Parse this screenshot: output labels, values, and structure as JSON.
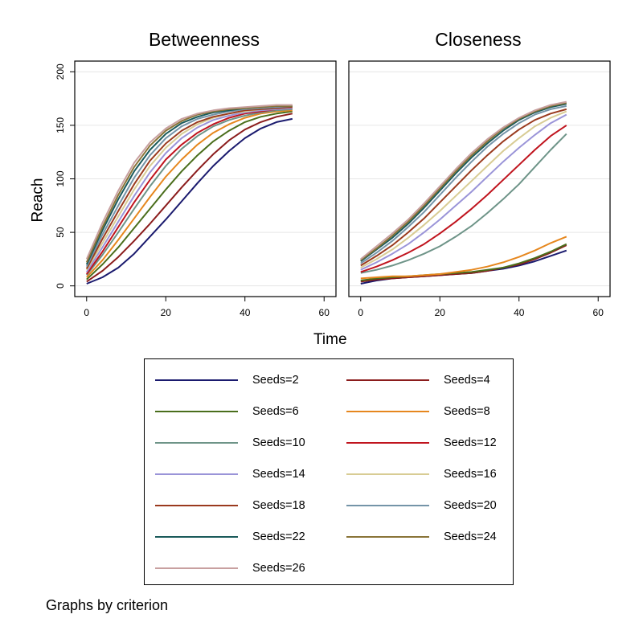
{
  "chart_data": {
    "type": "line",
    "title": "",
    "xlabel": "Time",
    "ylabel": "Reach",
    "xlim": [
      -3,
      63
    ],
    "ylim": [
      -10,
      210
    ],
    "xticks": [
      0,
      20,
      40,
      60
    ],
    "yticks": [
      0,
      50,
      100,
      150,
      200
    ],
    "grid": "horizontal",
    "legend_position": "bottom",
    "note": "Graphs by criterion",
    "x": [
      0,
      4,
      8,
      12,
      16,
      20,
      24,
      28,
      32,
      36,
      40,
      44,
      48,
      52
    ],
    "colors": [
      "#1a1a6e",
      "#8b1c1c",
      "#4a6e1c",
      "#e6871e",
      "#6e9488",
      "#c0141e",
      "#9a94d8",
      "#d8cc94",
      "#9a3a1e",
      "#7494a8",
      "#1a5a5a",
      "#8a7438",
      "#c8a0a0"
    ],
    "legend": [
      "Seeds=2",
      "Seeds=4",
      "Seeds=6",
      "Seeds=8",
      "Seeds=10",
      "Seeds=12",
      "Seeds=14",
      "Seeds=16",
      "Seeds=18",
      "Seeds=20",
      "Seeds=22",
      "Seeds=24",
      "Seeds=26"
    ],
    "panels": [
      {
        "title": "Betweenness",
        "series": [
          {
            "name": "Seeds=2",
            "values": [
              2,
              8,
              17,
              30,
              46,
              62,
              79,
              96,
              112,
              126,
              138,
              147,
              153,
              156
            ]
          },
          {
            "name": "Seeds=4",
            "values": [
              4,
              14,
              27,
              42,
              58,
              75,
              92,
              108,
              123,
              136,
              146,
              153,
              158,
              161
            ]
          },
          {
            "name": "Seeds=6",
            "values": [
              6,
              20,
              36,
              54,
              72,
              90,
              107,
              122,
              135,
              145,
              153,
              158,
              161,
              163
            ]
          },
          {
            "name": "Seeds=8",
            "values": [
              8,
              24,
              43,
              63,
              83,
              102,
              118,
              132,
              143,
              151,
              157,
              161,
              163,
              164
            ]
          },
          {
            "name": "Seeds=10",
            "values": [
              10,
              29,
              50,
              72,
              93,
              112,
              128,
              140,
              149,
              155,
              159,
              162,
              164,
              165
            ]
          },
          {
            "name": "Seeds=12",
            "values": [
              11,
              32,
              55,
              78,
              99,
              118,
              132,
              143,
              151,
              157,
              161,
              163,
              165,
              166
            ]
          },
          {
            "name": "Seeds=14",
            "values": [
              13,
              36,
              60,
              84,
              106,
              124,
              138,
              148,
              155,
              159,
              162,
              164,
              165,
              166
            ]
          },
          {
            "name": "Seeds=16",
            "values": [
              15,
              40,
              65,
              90,
              112,
              129,
              142,
              151,
              157,
              161,
              163,
              165,
              166,
              167
            ]
          },
          {
            "name": "Seeds=18",
            "values": [
              16,
              44,
              70,
              95,
              117,
              133,
              145,
              153,
              158,
              161,
              164,
              165,
              166,
              167
            ]
          },
          {
            "name": "Seeds=20",
            "values": [
              18,
              48,
              75,
              101,
              122,
              138,
              149,
              156,
              160,
              163,
              165,
              166,
              167,
              168
            ]
          },
          {
            "name": "Seeds=22",
            "values": [
              20,
              52,
              81,
              107,
              127,
              142,
              152,
              158,
              162,
              164,
              166,
              167,
              168,
              168
            ]
          },
          {
            "name": "Seeds=24",
            "values": [
              22,
              55,
              85,
              111,
              131,
              145,
              154,
              160,
              163,
              165,
              166,
              167,
              168,
              168
            ]
          },
          {
            "name": "Seeds=26",
            "values": [
              25,
              59,
              89,
              115,
              134,
              147,
              156,
              161,
              164,
              166,
              167,
              168,
              169,
              169
            ]
          }
        ]
      },
      {
        "title": "Closeness",
        "series": [
          {
            "name": "Seeds=2",
            "values": [
              2,
              5,
              7,
              8,
              9,
              10,
              11,
              12,
              14,
              16,
              19,
              23,
              28,
              33
            ]
          },
          {
            "name": "Seeds=4",
            "values": [
              4,
              6,
              7,
              8,
              9,
              10,
              11,
              12,
              14,
              17,
              20,
              25,
              31,
              38
            ]
          },
          {
            "name": "Seeds=6",
            "values": [
              5,
              7,
              8,
              9,
              10,
              11,
              12,
              13,
              15,
              17,
              21,
              26,
              32,
              39
            ]
          },
          {
            "name": "Seeds=8",
            "values": [
              7,
              8,
              9,
              9,
              10,
              11,
              13,
              15,
              18,
              22,
              27,
              33,
              40,
              46
            ]
          },
          {
            "name": "Seeds=10",
            "values": [
              12,
              15,
              19,
              24,
              30,
              37,
              46,
              56,
              68,
              81,
              95,
              111,
              127,
              142
            ]
          },
          {
            "name": "Seeds=12",
            "values": [
              13,
              18,
              24,
              31,
              39,
              49,
              60,
              72,
              85,
              99,
              113,
              127,
              140,
              150
            ]
          },
          {
            "name": "Seeds=14",
            "values": [
              15,
              22,
              30,
              39,
              50,
              62,
              75,
              88,
              102,
              116,
              129,
              141,
              152,
              160
            ]
          },
          {
            "name": "Seeds=16",
            "values": [
              17,
              25,
              34,
              45,
              57,
              70,
              84,
              98,
              112,
              126,
              138,
              149,
              157,
              163
            ]
          },
          {
            "name": "Seeds=18",
            "values": [
              19,
              28,
              38,
              50,
              63,
              78,
              93,
              108,
              122,
              135,
              146,
              155,
              161,
              165
            ]
          },
          {
            "name": "Seeds=20",
            "values": [
              21,
              31,
              42,
              55,
              69,
              85,
              101,
              116,
              130,
              142,
              152,
              160,
              165,
              168
            ]
          },
          {
            "name": "Seeds=22",
            "values": [
              23,
              34,
              45,
              58,
              73,
              89,
              105,
              120,
              133,
              145,
              155,
              162,
              167,
              170
            ]
          },
          {
            "name": "Seeds=24",
            "values": [
              24,
              35,
              47,
              60,
              75,
              91,
              107,
              122,
              135,
              147,
              156,
              163,
              168,
              171
            ]
          },
          {
            "name": "Seeds=26",
            "values": [
              25,
              37,
              49,
              62,
              77,
              93,
              109,
              124,
              137,
              148,
              157,
              164,
              169,
              172
            ]
          }
        ]
      }
    ]
  }
}
